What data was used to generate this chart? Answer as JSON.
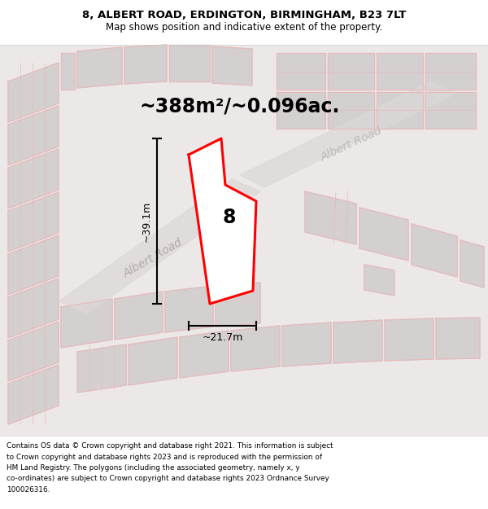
{
  "title": "8, ALBERT ROAD, ERDINGTON, BIRMINGHAM, B23 7LT",
  "subtitle": "Map shows position and indicative extent of the property.",
  "area_text": "~388m²/~0.096ac.",
  "property_number": "8",
  "width_label": "~21.7m",
  "height_label": "~39.1m",
  "road_label": "Albert Road",
  "footer_lines": [
    "Contains OS data © Crown copyright and database right 2021. This information is subject",
    "to Crown copyright and database rights 2023 and is reproduced with the permission of",
    "HM Land Registry. The polygons (including the associated geometry, namely x, y",
    "co-ordinates) are subject to Crown copyright and database rights 2023 Ordnance Survey",
    "100026316."
  ],
  "map_bg": "#ede8e8",
  "plot_outline_color": "#ff0000",
  "plot_fill_color": "#ffffff",
  "parcel_color": "#d4d0d0",
  "stripe_color": "#e8b8b8",
  "road_color": "#e0dada"
}
